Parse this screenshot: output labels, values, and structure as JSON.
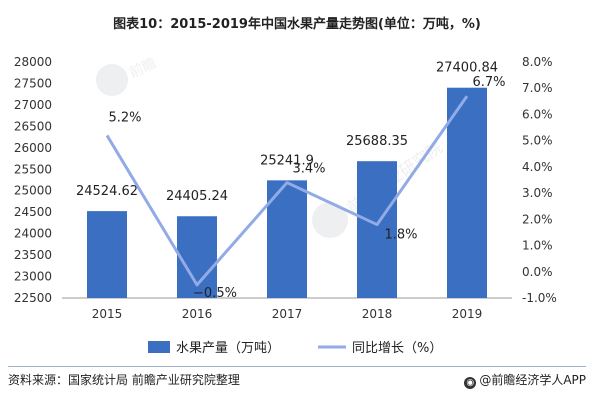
{
  "title": "图表10：2015-2019年中国水果产量走势图(单位：万吨，%)",
  "source": "资料来源：国家统计局 前瞻产业研究院整理",
  "footer_brand": "@前瞻经济学人APP",
  "chart_data": {
    "type": "bar",
    "categories": [
      "2015",
      "2016",
      "2017",
      "2018",
      "2019"
    ],
    "series": [
      {
        "name": "水果产量（万吨）",
        "type": "bar",
        "axis": "left",
        "color": "#3a6fc1",
        "values": [
          24524.62,
          24405.24,
          25241.9,
          25688.35,
          27400.84
        ],
        "labels": [
          "24524.62",
          "24405.24",
          "25241.9",
          "25688.35",
          "27400.84"
        ]
      },
      {
        "name": "同比增长（%）",
        "type": "line",
        "axis": "right",
        "color": "#92aae6",
        "values": [
          5.2,
          -0.5,
          3.4,
          1.8,
          6.7
        ],
        "labels": [
          "5.2%",
          "−0.5%",
          "3.4%",
          "1.8%",
          "6.7%"
        ]
      }
    ],
    "left_axis": {
      "min": 22500,
      "max": 28000,
      "step": 500,
      "ticks": [
        "22500",
        "23000",
        "23500",
        "24000",
        "24500",
        "25000",
        "25500",
        "26000",
        "26500",
        "27000",
        "27500",
        "28000"
      ]
    },
    "right_axis": {
      "min": -1.0,
      "max": 8.0,
      "step": 1.0,
      "ticks": [
        "-1.0%",
        "0.0%",
        "1.0%",
        "2.0%",
        "3.0%",
        "4.0%",
        "5.0%",
        "6.0%",
        "7.0%",
        "8.0%"
      ]
    },
    "legend_position": "bottom",
    "grid": false
  }
}
